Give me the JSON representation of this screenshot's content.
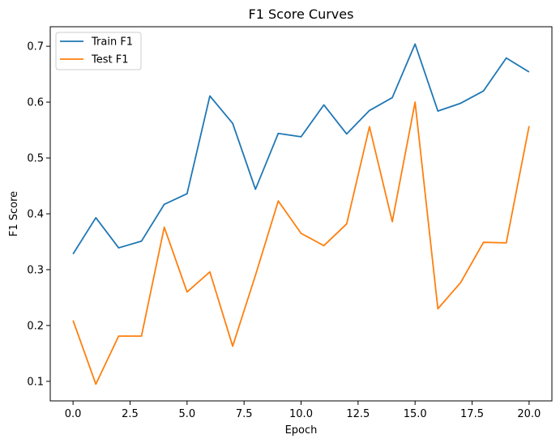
{
  "chart_data": {
    "type": "line",
    "title": "F1 Score Curves",
    "xlabel": "Epoch",
    "ylabel": "F1 Score",
    "xlim": [
      -1.0,
      21.0
    ],
    "ylim": [
      0.065,
      0.735
    ],
    "xticks": [
      0.0,
      2.5,
      5.0,
      7.5,
      10.0,
      12.5,
      15.0,
      17.5,
      20.0
    ],
    "xtick_labels": [
      "0.0",
      "2.5",
      "5.0",
      "7.5",
      "10.0",
      "12.5",
      "15.0",
      "17.5",
      "20.0"
    ],
    "yticks": [
      0.1,
      0.2,
      0.3,
      0.4,
      0.5,
      0.6,
      0.7
    ],
    "ytick_labels": [
      "0.1",
      "0.2",
      "0.3",
      "0.4",
      "0.5",
      "0.6",
      "0.7"
    ],
    "grid": false,
    "legend_position": "top-left",
    "x": [
      0,
      1,
      2,
      3,
      4,
      5,
      6,
      7,
      8,
      9,
      10,
      11,
      12,
      13,
      14,
      15,
      16,
      17,
      18,
      19,
      20
    ],
    "series": [
      {
        "name": "Train F1",
        "color": "#1f77b4",
        "values": [
          0.328,
          0.393,
          0.339,
          0.351,
          0.417,
          0.436,
          0.611,
          0.562,
          0.444,
          0.544,
          0.538,
          0.595,
          0.543,
          0.585,
          0.608,
          0.704,
          0.584,
          0.598,
          0.62,
          0.679,
          0.654
        ]
      },
      {
        "name": "Test F1",
        "color": "#ff7f0e",
        "values": [
          0.209,
          0.095,
          0.181,
          0.181,
          0.376,
          0.26,
          0.296,
          0.163,
          0.29,
          0.423,
          0.365,
          0.343,
          0.382,
          0.556,
          0.386,
          0.6,
          0.23,
          0.277,
          0.349,
          0.348,
          0.557
        ]
      }
    ]
  }
}
